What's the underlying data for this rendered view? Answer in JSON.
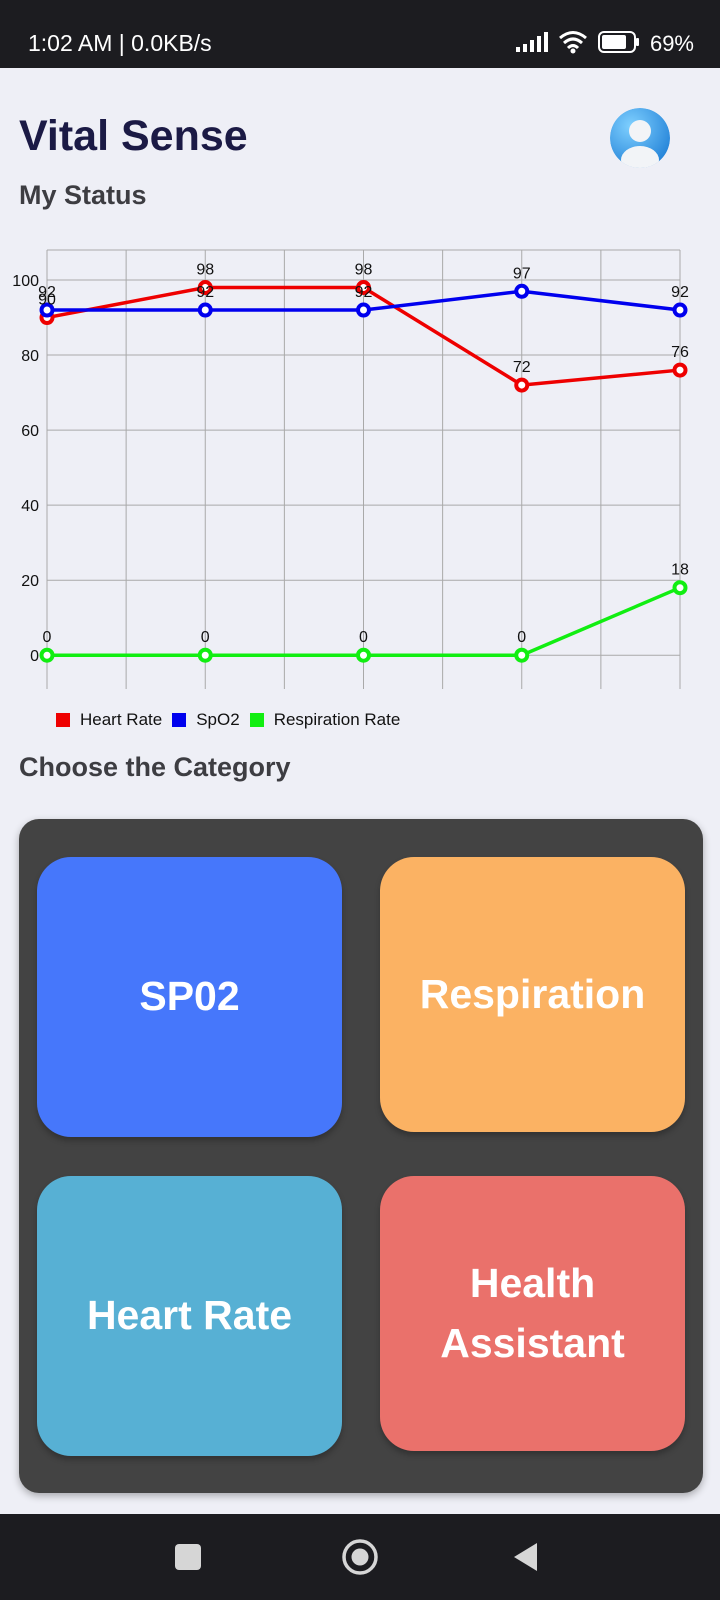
{
  "status_bar": {
    "time_speed": "1:02 AM | 0.0KB/s",
    "battery": "69%",
    "icons": [
      "signal-icon",
      "wifi-icon",
      "battery-icon"
    ]
  },
  "header": {
    "title": "Vital Sense",
    "avatar_icon": "user-avatar-icon"
  },
  "sections": {
    "status_title": "My Status",
    "category_title": "Choose the Category"
  },
  "chart_data": {
    "type": "line",
    "x": [
      1,
      2,
      3,
      4,
      5
    ],
    "ylim": [
      -9,
      108
    ],
    "yticks": [
      0,
      20,
      40,
      60,
      80,
      100
    ],
    "grid": true,
    "legend_position": "bottom-left",
    "series": [
      {
        "name": "Heart Rate",
        "color": "#ee0000",
        "values": [
          90,
          98,
          98,
          72,
          76
        ]
      },
      {
        "name": "SpO2",
        "color": "#0000ee",
        "values": [
          92,
          92,
          92,
          97,
          92
        ]
      },
      {
        "name": "Respiration Rate",
        "color": "#11ee11",
        "values": [
          0,
          0,
          0,
          0,
          18
        ]
      }
    ]
  },
  "categories": {
    "sp02": {
      "label": "SP02",
      "color": "#4677fb"
    },
    "respiration": {
      "label": "Respiration",
      "color": "#fbb263"
    },
    "heart_rate": {
      "label": "Heart Rate",
      "color": "#57b0d4"
    },
    "health_assistant": {
      "label": "Health Assistant",
      "color": "#ea716b"
    }
  },
  "nav": {
    "icons": [
      "recent-apps-icon",
      "home-icon",
      "back-icon"
    ]
  }
}
